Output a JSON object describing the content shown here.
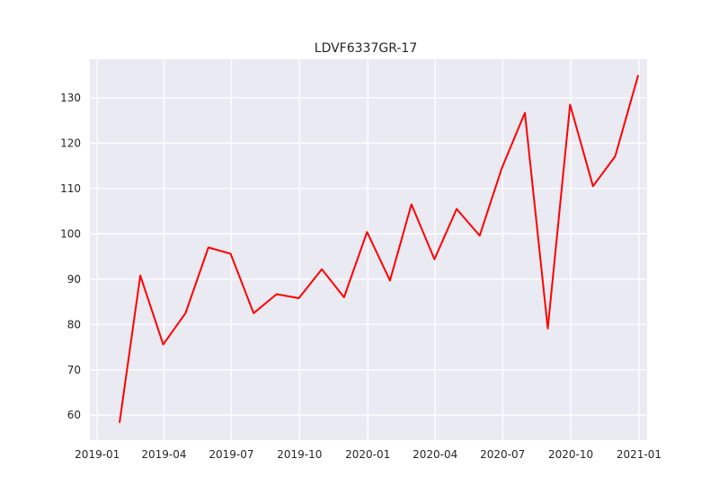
{
  "chart_data": {
    "type": "line",
    "title": "LDVF6337GR-17",
    "xlabel": "",
    "ylabel": "",
    "x_ticks": [
      "2019-01",
      "2019-04",
      "2019-07",
      "2019-10",
      "2020-01",
      "2020-04",
      "2020-07",
      "2020-10",
      "2021-01"
    ],
    "y_ticks": [
      60,
      70,
      80,
      90,
      100,
      110,
      120,
      130
    ],
    "ylim": [
      54.5,
      138.5
    ],
    "xlim": [
      "2018-12-22",
      "2021-01-12"
    ],
    "grid": true,
    "background": "#eaeaf2",
    "line_color": "#ff0000",
    "series": [
      {
        "x": [
          "2019-01-31",
          "2019-02-28",
          "2019-03-31",
          "2019-04-30",
          "2019-05-31",
          "2019-06-30",
          "2019-07-31",
          "2019-08-31",
          "2019-09-30",
          "2019-10-31",
          "2019-11-30",
          "2019-12-31",
          "2020-01-31",
          "2020-02-29",
          "2020-03-31",
          "2020-04-30",
          "2020-05-31",
          "2020-06-30",
          "2020-07-31",
          "2020-08-31",
          "2020-09-30",
          "2020-10-31",
          "2020-11-30",
          "2020-12-31"
        ],
        "values": [
          58.3,
          90.8,
          75.6,
          82.5,
          97.0,
          95.6,
          82.5,
          86.7,
          85.8,
          92.2,
          86.0,
          100.4,
          89.7,
          106.5,
          94.4,
          105.5,
          99.6,
          114.5,
          126.7,
          79.1,
          128.5,
          110.5,
          117.1,
          135.0
        ]
      }
    ]
  }
}
